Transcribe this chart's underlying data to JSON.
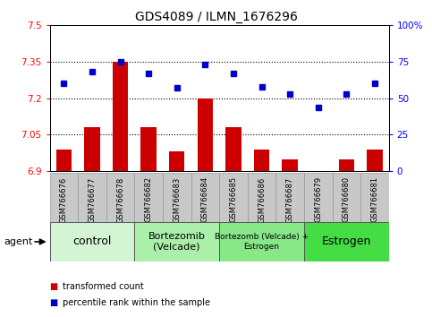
{
  "title": "GDS4089 / ILMN_1676296",
  "samples": [
    "GSM766676",
    "GSM766677",
    "GSM766678",
    "GSM766682",
    "GSM766683",
    "GSM766684",
    "GSM766685",
    "GSM766686",
    "GSM766687",
    "GSM766679",
    "GSM766680",
    "GSM766681"
  ],
  "transformed_count": [
    6.99,
    7.08,
    7.35,
    7.08,
    6.98,
    7.2,
    7.08,
    6.99,
    6.95,
    6.88,
    6.95,
    6.99
  ],
  "percentile_rank": [
    60,
    68,
    75,
    67,
    57,
    73,
    67,
    58,
    53,
    44,
    53,
    60
  ],
  "bar_color": "#cc0000",
  "dot_color": "#0000cc",
  "ylim_left": [
    6.9,
    7.5
  ],
  "ylim_right": [
    0,
    100
  ],
  "yticks_left": [
    6.9,
    7.05,
    7.2,
    7.35,
    7.5
  ],
  "yticks_right": [
    0,
    25,
    50,
    75,
    100
  ],
  "ytick_labels_left": [
    "6.9",
    "7.05",
    "7.2",
    "7.35",
    "7.5"
  ],
  "ytick_labels_right": [
    "0",
    "25",
    "50",
    "75",
    "100%"
  ],
  "hlines": [
    7.05,
    7.2,
    7.35
  ],
  "groups": [
    {
      "label": "control",
      "start": 0,
      "end": 3,
      "color": "#d4f5d4",
      "fontsize": 9
    },
    {
      "label": "Bortezomib\n(Velcade)",
      "start": 3,
      "end": 6,
      "color": "#aaf0aa",
      "fontsize": 8
    },
    {
      "label": "Bortezomb (Velcade) +\nEstrogen",
      "start": 6,
      "end": 9,
      "color": "#88e888",
      "fontsize": 6.5
    },
    {
      "label": "Estrogen",
      "start": 9,
      "end": 12,
      "color": "#44dd44",
      "fontsize": 9
    }
  ],
  "agent_label": "agent",
  "legend_items": [
    {
      "color": "#cc0000",
      "label": "transformed count"
    },
    {
      "color": "#0000cc",
      "label": "percentile rank within the sample"
    }
  ],
  "bar_baseline": 6.9,
  "bar_width": 0.55,
  "tick_bg_color": "#c8c8c8",
  "plot_bg_color": "#ffffff"
}
